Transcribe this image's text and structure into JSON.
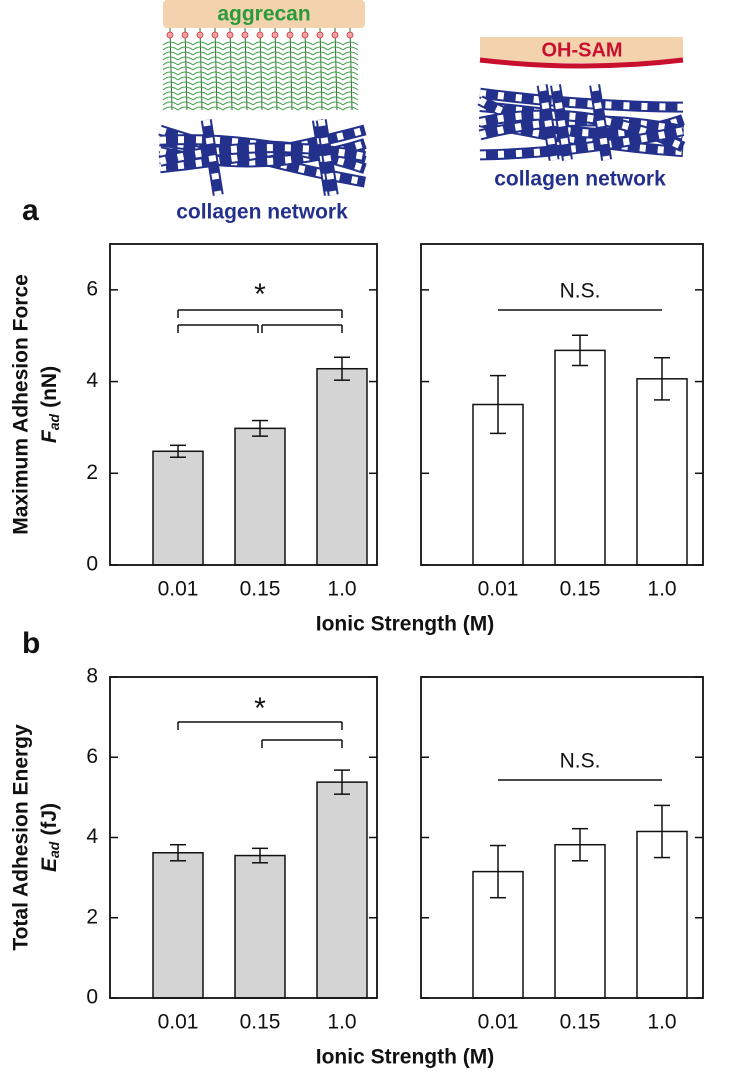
{
  "illustration": {
    "left_top": "aggrecan",
    "left_bottom": "collagen network",
    "right_top": "OH-SAM",
    "right_bottom": "collagen network"
  },
  "chart_data": [
    {
      "type": "bar",
      "panel_label": "a",
      "ylabel": "Maximum Adhesion Force",
      "ylabel_symbol": "F",
      "ylabel_subscript": "ad",
      "ylabel_unit": "(nN)",
      "xlabel": "Ionic Strength (M)",
      "categories": [
        "0.01",
        "0.15",
        "1.0"
      ],
      "values": [
        2.48,
        2.98,
        4.28
      ],
      "errors": [
        0.13,
        0.17,
        0.25
      ],
      "color": "#d4d4d4",
      "ylim": [
        0,
        7
      ],
      "yticks": [
        0,
        2,
        4,
        6
      ],
      "annotation": "*"
    },
    {
      "type": "bar",
      "categories": [
        "0.01",
        "0.15",
        "1.0"
      ],
      "values": [
        3.5,
        4.68,
        4.06
      ],
      "errors": [
        0.63,
        0.33,
        0.46
      ],
      "color": "#ffffff",
      "ylim": [
        0,
        7
      ],
      "yticks": [
        0,
        2,
        4,
        6
      ],
      "annotation": "N.S."
    },
    {
      "type": "bar",
      "panel_label": "b",
      "ylabel": "Total Adhesion Energy",
      "ylabel_symbol": "E",
      "ylabel_subscript": "ad",
      "ylabel_unit": "(fJ)",
      "xlabel": "Ionic Strength (M)",
      "categories": [
        "0.01",
        "0.15",
        "1.0"
      ],
      "values": [
        3.62,
        3.55,
        5.38
      ],
      "errors": [
        0.2,
        0.18,
        0.3
      ],
      "color": "#d4d4d4",
      "ylim": [
        0,
        8
      ],
      "yticks": [
        0,
        2,
        4,
        6,
        8
      ],
      "annotation": "*"
    },
    {
      "type": "bar",
      "categories": [
        "0.01",
        "0.15",
        "1.0"
      ],
      "values": [
        3.15,
        3.82,
        4.15
      ],
      "errors": [
        0.65,
        0.4,
        0.65
      ],
      "color": "#ffffff",
      "ylim": [
        0,
        8
      ],
      "yticks": [
        0,
        2,
        4,
        6,
        8
      ],
      "annotation": "N.S."
    }
  ]
}
